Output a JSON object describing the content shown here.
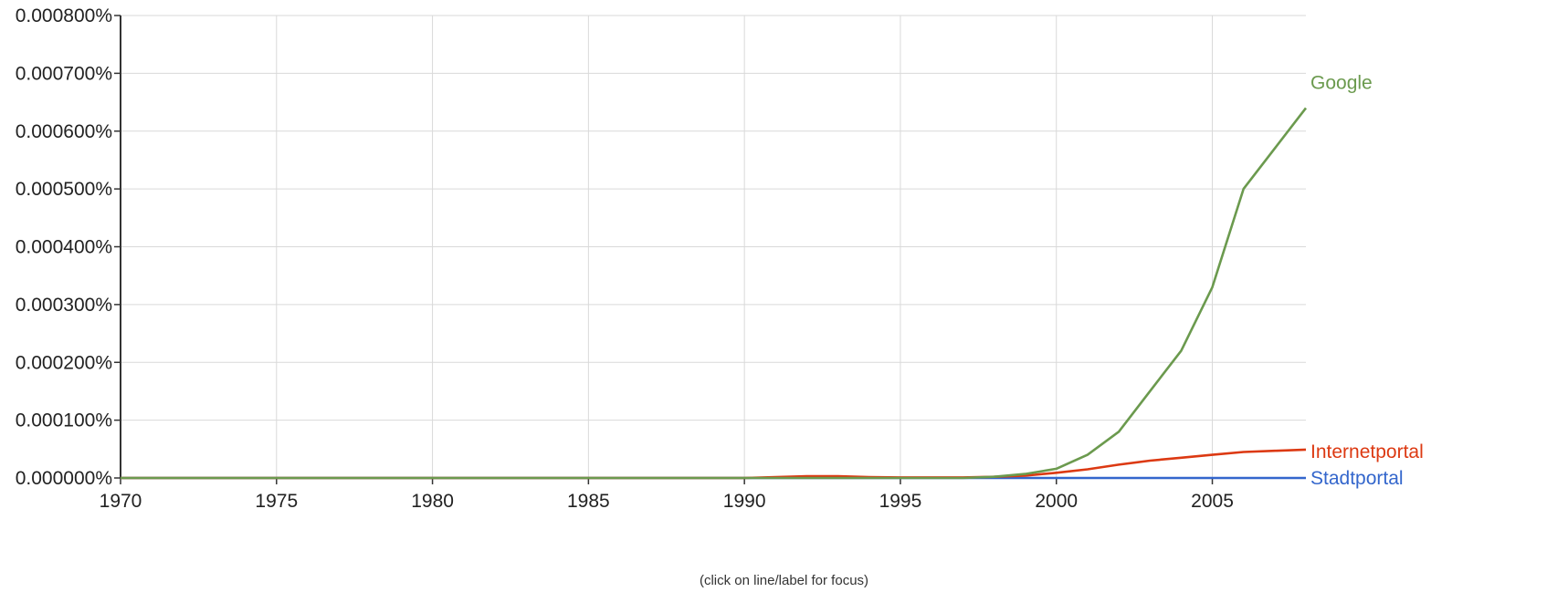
{
  "hint": "(click on line/label for focus)",
  "colors": {
    "grid": "#d9d9d9",
    "axis": "#333333"
  },
  "chart_data": {
    "type": "line",
    "x": [
      1970,
      1971,
      1972,
      1973,
      1974,
      1975,
      1976,
      1977,
      1978,
      1979,
      1980,
      1981,
      1982,
      1983,
      1984,
      1985,
      1986,
      1987,
      1988,
      1989,
      1990,
      1991,
      1992,
      1993,
      1994,
      1995,
      1996,
      1997,
      1998,
      1999,
      2000,
      2001,
      2002,
      2003,
      2004,
      2005,
      2006,
      2007,
      2008
    ],
    "xlim": [
      1970,
      2008
    ],
    "x_ticks": [
      1970,
      1975,
      1980,
      1985,
      1990,
      1995,
      2000,
      2005
    ],
    "ylim": [
      0,
      0.0008
    ],
    "y_ticks": [
      {
        "value": 0.0,
        "label": "0.000000%"
      },
      {
        "value": 0.0001,
        "label": "0.000100%"
      },
      {
        "value": 0.0002,
        "label": "0.000200%"
      },
      {
        "value": 0.0003,
        "label": "0.000300%"
      },
      {
        "value": 0.0004,
        "label": "0.000400%"
      },
      {
        "value": 0.0005,
        "label": "0.000500%"
      },
      {
        "value": 0.0006,
        "label": "0.000600%"
      },
      {
        "value": 0.0007,
        "label": "0.000700%"
      },
      {
        "value": 0.0008,
        "label": "0.000800%"
      }
    ],
    "grid": true,
    "series": [
      {
        "name": "Stadtportal",
        "color": "#3366cc",
        "values": [
          0,
          0,
          0,
          0,
          0,
          0,
          0,
          0,
          0,
          0,
          0,
          0,
          0,
          0,
          0,
          0,
          0,
          0,
          0,
          0,
          0,
          0,
          0,
          0,
          0,
          0,
          0,
          0,
          0,
          0,
          0,
          0,
          0,
          0,
          0,
          0,
          0,
          0,
          0
        ]
      },
      {
        "name": "Internetportal",
        "color": "#dc3912",
        "values": [
          0,
          0,
          0,
          0,
          0,
          0,
          0,
          0,
          0,
          0,
          0,
          0,
          0,
          0,
          0,
          0,
          0,
          0,
          0,
          0,
          0,
          1.5e-06,
          3e-06,
          3e-06,
          1.5e-06,
          1e-06,
          1e-06,
          1e-06,
          2e-06,
          4e-06,
          9e-06,
          1.5e-05,
          2.3e-05,
          3e-05,
          3.5e-05,
          4e-05,
          4.5e-05,
          4.7e-05,
          4.9e-05
        ]
      },
      {
        "name": "Google",
        "color": "#6b9a4e",
        "values": [
          0,
          0,
          0,
          0,
          0,
          0,
          0,
          0,
          0,
          0,
          0,
          0,
          0,
          0,
          0,
          0,
          0,
          0,
          0,
          0,
          0,
          0,
          0,
          0,
          0,
          0,
          0,
          0,
          2e-06,
          7e-06,
          1.6e-05,
          4e-05,
          8e-05,
          0.00015,
          0.00022,
          0.00033,
          0.0005,
          0.00057,
          0.00064
        ]
      }
    ]
  }
}
